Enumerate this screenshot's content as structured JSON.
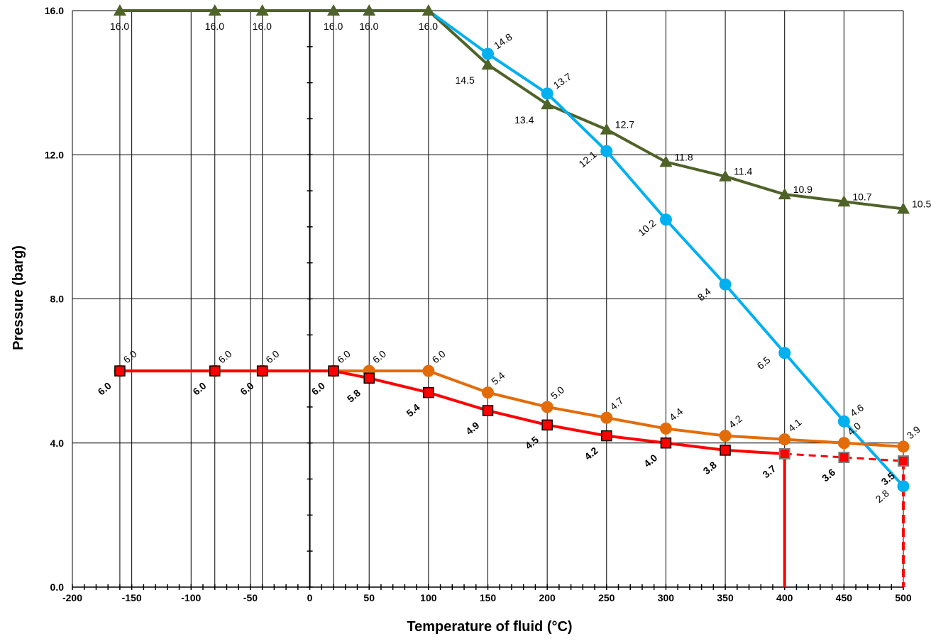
{
  "chart_data": {
    "type": "line",
    "title": "",
    "xlabel": "Temperature of fluid (°C)",
    "ylabel": "Pressure (barg)",
    "xlim": [
      -200,
      500
    ],
    "ylim": [
      0,
      16
    ],
    "x_ticks": [
      "-200",
      "-150",
      "-100",
      "-50",
      "0",
      "50",
      "100",
      "150",
      "200",
      "250",
      "300",
      "350",
      "400",
      "450",
      "500"
    ],
    "y_ticks": [
      "0.0",
      "4.0",
      "8.0",
      "12.0",
      "16.0"
    ],
    "grid": true,
    "colors": {
      "green": "#4F6228",
      "blue": "#00B0F0",
      "orange": "#E36C09",
      "red": "#FF0000"
    },
    "series": [
      {
        "key": "green",
        "marker": "triangle",
        "points": [
          {
            "x": -160,
            "y": 16.0,
            "label": "16.0"
          },
          {
            "x": -80,
            "y": 16.0,
            "label": "16.0"
          },
          {
            "x": -40,
            "y": 16.0,
            "label": "16.0"
          },
          {
            "x": 20,
            "y": 16.0,
            "label": "16.0"
          },
          {
            "x": 50,
            "y": 16.0,
            "label": "16.0"
          },
          {
            "x": 100,
            "y": 16.0,
            "label": "16.0"
          },
          {
            "x": 150,
            "y": 14.5,
            "label": "14.5"
          },
          {
            "x": 200,
            "y": 13.4,
            "label": "13.4"
          },
          {
            "x": 250,
            "y": 12.7,
            "label": "12.7"
          },
          {
            "x": 300,
            "y": 11.8,
            "label": "11.8"
          },
          {
            "x": 350,
            "y": 11.4,
            "label": "11.4"
          },
          {
            "x": 400,
            "y": 10.9,
            "label": "10.9"
          },
          {
            "x": 450,
            "y": 10.7,
            "label": "10.7"
          },
          {
            "x": 500,
            "y": 10.5,
            "label": "10.5"
          }
        ]
      },
      {
        "key": "blue",
        "marker": "circle",
        "points": [
          {
            "x": 100,
            "y": 16.0,
            "label": ""
          },
          {
            "x": 150,
            "y": 14.8,
            "label": "14.8"
          },
          {
            "x": 200,
            "y": 13.7,
            "label": "13.7"
          },
          {
            "x": 250,
            "y": 12.1,
            "label": "12.1"
          },
          {
            "x": 300,
            "y": 10.2,
            "label": "10.2"
          },
          {
            "x": 350,
            "y": 8.4,
            "label": "8.4"
          },
          {
            "x": 400,
            "y": 6.5,
            "label": "6.5"
          },
          {
            "x": 450,
            "y": 4.6,
            "label": "4.6"
          },
          {
            "x": 500,
            "y": 2.8,
            "label": "2.8"
          }
        ]
      },
      {
        "key": "orange",
        "marker": "circle",
        "points": [
          {
            "x": -160,
            "y": 6.0,
            "label": "6.0"
          },
          {
            "x": -80,
            "y": 6.0,
            "label": "6.0"
          },
          {
            "x": -40,
            "y": 6.0,
            "label": "6.0"
          },
          {
            "x": 20,
            "y": 6.0,
            "label": "6.0"
          },
          {
            "x": 50,
            "y": 6.0,
            "label": "6.0"
          },
          {
            "x": 100,
            "y": 6.0,
            "label": "6.0"
          },
          {
            "x": 150,
            "y": 5.4,
            "label": "5.4"
          },
          {
            "x": 200,
            "y": 5.0,
            "label": "5.0"
          },
          {
            "x": 250,
            "y": 4.7,
            "label": "4.7"
          },
          {
            "x": 300,
            "y": 4.4,
            "label": "4.4"
          },
          {
            "x": 350,
            "y": 4.2,
            "label": "4.2"
          },
          {
            "x": 400,
            "y": 4.1,
            "label": "4.1"
          },
          {
            "x": 450,
            "y": 4.0,
            "label": "4.0"
          },
          {
            "x": 500,
            "y": 3.9,
            "label": "3.9"
          }
        ]
      },
      {
        "key": "red",
        "marker": "square",
        "points": [
          {
            "x": -160,
            "y": 6.0,
            "label": "6.0"
          },
          {
            "x": -80,
            "y": 6.0,
            "label": "6.0"
          },
          {
            "x": -40,
            "y": 6.0,
            "label": "6.0"
          },
          {
            "x": 20,
            "y": 6.0,
            "label": "6.0"
          },
          {
            "x": 50,
            "y": 5.8,
            "label": "5.8"
          },
          {
            "x": 100,
            "y": 5.4,
            "label": "5.4"
          },
          {
            "x": 150,
            "y": 4.9,
            "label": "4.9"
          },
          {
            "x": 200,
            "y": 4.5,
            "label": "4.5"
          },
          {
            "x": 250,
            "y": 4.2,
            "label": "4.2"
          },
          {
            "x": 300,
            "y": 4.0,
            "label": "4.0"
          },
          {
            "x": 350,
            "y": 3.8,
            "label": "3.8"
          },
          {
            "x": 400,
            "y": 3.7,
            "label": "3.7"
          },
          {
            "x": 450,
            "y": 3.6,
            "label": "3.6"
          },
          {
            "x": 500,
            "y": 3.5,
            "label": "3.5"
          }
        ],
        "solid_to_x": 400,
        "dashed_from_x": 400,
        "drop_lines": [
          {
            "x": 400,
            "y": 3.7,
            "style": "solid"
          },
          {
            "x": 500,
            "y": 3.5,
            "style": "dashed"
          }
        ]
      }
    ]
  }
}
